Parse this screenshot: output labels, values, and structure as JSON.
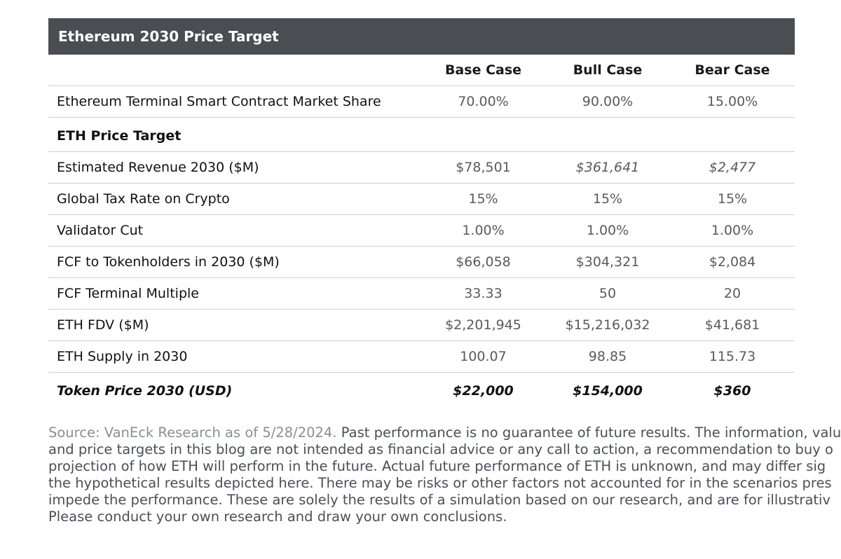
{
  "table": {
    "title": "Ethereum 2030 Price Target",
    "columns": [
      "Base Case",
      "Bull Case",
      "Bear Case"
    ],
    "rows": [
      {
        "label": "Ethereum Terminal Smart Contract Market Share",
        "values": [
          "70.00%",
          "90.00%",
          "15.00%"
        ]
      },
      {
        "label": "ETH Price Target",
        "values": [
          "",
          "",
          ""
        ]
      },
      {
        "label": "Estimated Revenue 2030 ($M)",
        "values": [
          "$78,501",
          "$361,641",
          "$2,477"
        ]
      },
      {
        "label": "Global Tax Rate on Crypto",
        "values": [
          "15%",
          "15%",
          "15%"
        ]
      },
      {
        "label": "Validator Cut",
        "values": [
          "1.00%",
          "1.00%",
          "1.00%"
        ]
      },
      {
        "label": "FCF to Tokenholders in 2030 ($M)",
        "values": [
          "$66,058",
          "$304,321",
          "$2,084"
        ]
      },
      {
        "label": "FCF Terminal Multiple",
        "values": [
          "33.33",
          "50",
          "20"
        ]
      },
      {
        "label": "ETH FDV ($M)",
        "values": [
          "$2,201,945",
          "$15,216,032",
          "$41,681"
        ]
      },
      {
        "label": "ETH Supply in 2030",
        "values": [
          "100.07",
          "98.85",
          "115.73"
        ]
      },
      {
        "label": "Token Price 2030 (USD)",
        "values": [
          "$22,000",
          "$154,000",
          "$360"
        ]
      }
    ]
  },
  "footnote": {
    "source": "Source: VanEck Research as of 5/28/2024.",
    "line1": " Past performance is no guarantee of future results. The information, valua",
    "line2": "and price targets in this blog are not intended as financial advice or any call to action, a recommendation to buy o",
    "line3": "projection of how ETH will perform in the future. Actual future performance of ETH is unknown, and may differ sig",
    "line4": "the hypothetical results depicted here. There may be risks or other factors not accounted for in the scenarios pres",
    "line5": "impede the performance. These are solely the results of a simulation based on our research, and are for illustrativ",
    "line6": "Please conduct your own research and draw your own conclusions."
  }
}
